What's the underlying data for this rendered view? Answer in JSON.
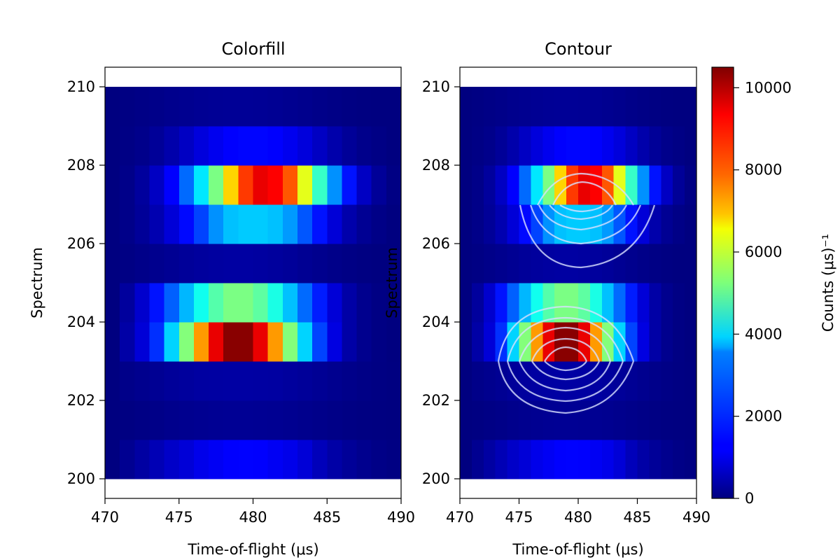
{
  "chart_data": [
    {
      "type": "heatmap",
      "title": "Colorfill",
      "xlabel": "Time-of-flight (μs)",
      "ylabel": "Spectrum",
      "xlim": [
        470,
        490
      ],
      "ylim": [
        199.5,
        210.5
      ],
      "xticks": [
        470,
        475,
        480,
        485,
        490
      ],
      "yticks": [
        200,
        202,
        204,
        206,
        208,
        210
      ],
      "x_bin_start": 470,
      "x_bin_width": 1,
      "y_bin_edges": [
        200,
        201,
        202,
        203,
        204,
        205,
        206,
        207,
        208,
        209,
        210
      ],
      "rows": [
        {
          "spectrum": 200.5,
          "values": [
            0,
            180,
            350,
            550,
            750,
            900,
            1100,
            1200,
            1300,
            1320,
            1300,
            1200,
            1100,
            900,
            600,
            400,
            250,
            150,
            80,
            40
          ]
        },
        {
          "spectrum": 201.5,
          "values": [
            0,
            30,
            60,
            90,
            130,
            160,
            180,
            200,
            210,
            210,
            200,
            190,
            170,
            140,
            110,
            80,
            50,
            30,
            20,
            10
          ]
        },
        {
          "spectrum": 202.5,
          "values": [
            0,
            100,
            150,
            200,
            260,
            300,
            340,
            360,
            370,
            370,
            360,
            340,
            300,
            260,
            210,
            160,
            110,
            70,
            40,
            20
          ]
        },
        {
          "spectrum": 203.5,
          "values": [
            0,
            400,
            900,
            1800,
            3500,
            5300,
            7600,
            9400,
            10400,
            10400,
            9400,
            7600,
            5300,
            3500,
            2000,
            1000,
            400,
            150,
            50,
            0
          ]
        },
        {
          "spectrum": 204.5,
          "values": [
            0,
            300,
            800,
            1500,
            2300,
            3200,
            4100,
            4800,
            5200,
            5200,
            4900,
            4200,
            3300,
            2400,
            1600,
            900,
            400,
            150,
            50,
            0
          ]
        },
        {
          "spectrum": 205.5,
          "values": [
            0,
            50,
            100,
            150,
            200,
            260,
            300,
            330,
            350,
            350,
            330,
            300,
            260,
            200,
            150,
            100,
            60,
            30,
            10,
            0
          ]
        },
        {
          "spectrum": 206.5,
          "values": [
            0,
            100,
            250,
            500,
            900,
            1400,
            2000,
            2800,
            3300,
            3400,
            3400,
            3300,
            2900,
            2200,
            1500,
            900,
            450,
            200,
            80,
            0
          ]
        },
        {
          "spectrum": 207.5,
          "values": [
            0,
            100,
            300,
            700,
            1300,
            2400,
            3700,
            5200,
            7000,
            8600,
            9400,
            9200,
            8300,
            6300,
            4500,
            2800,
            1500,
            700,
            250,
            50
          ]
        },
        {
          "spectrum": 208.5,
          "values": [
            0,
            60,
            120,
            250,
            450,
            700,
            950,
            1150,
            1300,
            1350,
            1350,
            1300,
            1150,
            950,
            700,
            450,
            250,
            120,
            60,
            0
          ]
        },
        {
          "spectrum": 209.5,
          "values": [
            0,
            40,
            70,
            100,
            140,
            170,
            200,
            220,
            230,
            230,
            220,
            200,
            170,
            140,
            100,
            70,
            40,
            20,
            10,
            0
          ]
        }
      ]
    },
    {
      "type": "heatmap",
      "title": "Contour",
      "xlabel": "Time-of-flight (μs)",
      "ylabel": "Spectrum",
      "xlim": [
        470,
        490
      ],
      "ylim": [
        199.5,
        210.5
      ],
      "xticks": [
        470,
        475,
        480,
        485,
        490
      ],
      "yticks": [
        200,
        202,
        204,
        206,
        208,
        210
      ],
      "same_data_as": "Colorfill",
      "overlay": "white contour lines over peaks near spectrum 203-205 and 206-208",
      "colorbar": {
        "label": "Counts (μs)⁻¹",
        "vmin": 0,
        "vmax": 10500,
        "ticks": [
          0,
          2000,
          4000,
          6000,
          8000,
          10000
        ],
        "colormap": "jet"
      }
    }
  ]
}
